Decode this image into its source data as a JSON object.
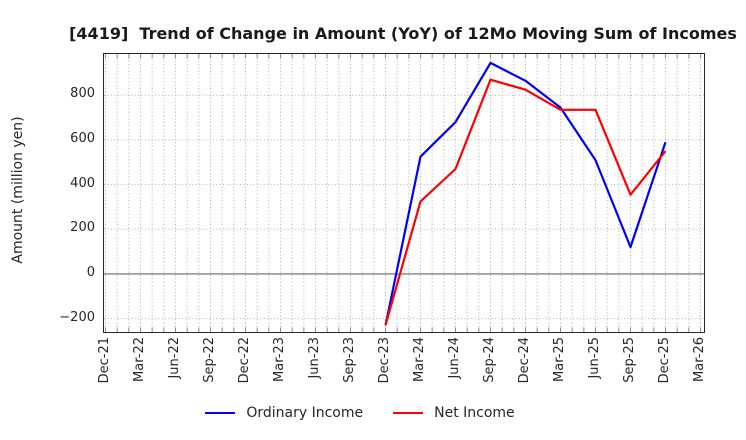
{
  "figure": {
    "title": "[4419]  Trend of Change in Amount (YoY) of 12Mo Moving Sum of Incomes",
    "ylabel": "Amount (million yen)"
  },
  "colors": {
    "ordinary_income": "#0000ff",
    "net_income": "#ff0000",
    "grid": "#b0b0b0",
    "zero_line": "#808080",
    "axis_border": "#262626",
    "text": "#262626"
  },
  "legend": {
    "items": [
      {
        "label": "Ordinary Income",
        "color": "#0000ff"
      },
      {
        "label": "Net Income",
        "color": "#ff0000"
      }
    ]
  },
  "chart_data": {
    "type": "line",
    "title": "[4419]  Trend of Change in Amount (YoY) of 12Mo Moving Sum of Incomes",
    "xlabel": "",
    "ylabel": "Amount (million yen)",
    "x_tick_labels": [
      "Dec-21",
      "Mar-22",
      "Jun-22",
      "Sep-22",
      "Dec-22",
      "Mar-23",
      "Jun-23",
      "Sep-23",
      "Dec-23",
      "Mar-24",
      "Jun-24",
      "Sep-24",
      "Dec-24",
      "Mar-25",
      "Jun-25",
      "Sep-25",
      "Dec-25",
      "Mar-26"
    ],
    "y_ticks": [
      {
        "value": 800,
        "label": "800"
      },
      {
        "value": 600,
        "label": "600"
      },
      {
        "value": 400,
        "label": "400"
      },
      {
        "value": 200,
        "label": "200"
      },
      {
        "value": 0,
        "label": "0"
      },
      {
        "value": -200,
        "label": "−200"
      }
    ],
    "ylim": [
      -260,
      985
    ],
    "minor_x_divisions_per_quarter": 3,
    "grid": {
      "style": "dotted",
      "zero_line": "solid",
      "legend_position": "bottom center"
    },
    "series": [
      {
        "name": "Ordinary Income",
        "color": "#0000ff",
        "x": [
          "Dec-23",
          "Mar-24",
          "Jun-24",
          "Sep-24",
          "Dec-24",
          "Mar-25",
          "Jun-25",
          "Sep-25",
          "Dec-25"
        ],
        "values": [
          -230,
          525,
          680,
          945,
          865,
          745,
          510,
          120,
          590
        ]
      },
      {
        "name": "Net Income",
        "color": "#ff0000",
        "x": [
          "Dec-23",
          "Mar-24",
          "Jun-24",
          "Sep-24",
          "Dec-24",
          "Mar-25",
          "Jun-25",
          "Sep-25",
          "Dec-25"
        ],
        "values": [
          -230,
          325,
          470,
          870,
          825,
          735,
          735,
          355,
          550
        ]
      }
    ]
  }
}
